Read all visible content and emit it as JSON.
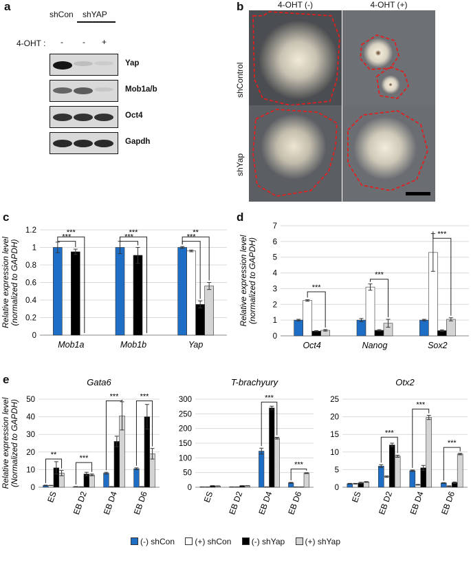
{
  "panel_a": {
    "letter": "a",
    "lane_groups": [
      "shCon",
      "shYAP"
    ],
    "treatment_label": "4-OHT :",
    "treatment_marks": [
      "-",
      "-",
      "+"
    ],
    "blots": [
      {
        "label": "Yap",
        "bands": [
          0.95,
          0.12,
          0.06
        ]
      },
      {
        "label": "Mob1a/b",
        "bands": [
          0.55,
          0.6,
          0.08
        ]
      },
      {
        "label": "Oct4",
        "bands": [
          0.8,
          0.8,
          0.8
        ]
      },
      {
        "label": "Gapdh",
        "bands": [
          0.85,
          0.85,
          0.85
        ]
      }
    ]
  },
  "panel_b": {
    "letter": "b",
    "col_headers": [
      "4-OHT (-)",
      "4-OHT (+)"
    ],
    "row_labels": [
      "shControl",
      "shYap"
    ]
  },
  "panel_c": {
    "letter": "c"
  },
  "panel_d": {
    "letter": "d"
  },
  "panel_e": {
    "letter": "e"
  },
  "colors": {
    "neg_shCon": "#1f6ec5",
    "pos_shCon": "#ffffff",
    "neg_shYap": "#000000",
    "pos_shYap": "#d4d4d4",
    "outline_red": "#e02020"
  },
  "legend": [
    "(-) shCon",
    "(+) shCon",
    "(-) shYap",
    "(+) shYap"
  ],
  "chart_data": [
    {
      "id": "c",
      "type": "bar",
      "title": "",
      "ylabel": "Relative expression level",
      "ylabel2": "(normalized to GAPDH)",
      "ylim": [
        0,
        1.2
      ],
      "yticks": [
        "0",
        "0.2",
        "0.4",
        "0.6",
        "0.8",
        "1",
        "1.2"
      ],
      "categories": [
        "Mob1a",
        "Mob1b",
        "Yap"
      ],
      "series": [
        {
          "name": "(-) shCon",
          "values": [
            1.0,
            1.0,
            1.0
          ],
          "errors": [
            0.06,
            0.07,
            0.01
          ]
        },
        {
          "name": "(+) shCon",
          "values": [
            0.0,
            0.0,
            0.96
          ],
          "errors": [
            0,
            0,
            0.01
          ]
        },
        {
          "name": "(-) shYap",
          "values": [
            0.95,
            0.91,
            0.35
          ],
          "errors": [
            0.03,
            0.09,
            0.04
          ]
        },
        {
          "name": "(+) shYap",
          "values": [
            0.0,
            0.0,
            0.56
          ],
          "errors": [
            0,
            0,
            0.04
          ]
        }
      ],
      "sig": [
        {
          "cat": 0,
          "from": 0,
          "to": 3,
          "level": 1.12,
          "label": "***"
        },
        {
          "cat": 0,
          "from": 0,
          "to": 2,
          "level": 1.07,
          "label": "***"
        },
        {
          "cat": 1,
          "from": 0,
          "to": 3,
          "level": 1.12,
          "label": "***"
        },
        {
          "cat": 1,
          "from": 0,
          "to": 2,
          "level": 1.07,
          "label": "***"
        },
        {
          "cat": 2,
          "from": 0,
          "to": 3,
          "level": 1.12,
          "label": "**"
        },
        {
          "cat": 2,
          "from": 0,
          "to": 2,
          "level": 1.07,
          "label": "***"
        }
      ]
    },
    {
      "id": "d",
      "type": "bar",
      "title": "",
      "ylabel": "Relative expression level",
      "ylabel2": "(normalized to GAPDH)",
      "ylim": [
        0,
        7
      ],
      "yticks": [
        "0",
        "1",
        "2",
        "3",
        "4",
        "5",
        "6",
        "7"
      ],
      "categories": [
        "Oct4",
        "Nanog",
        "Sox2"
      ],
      "series": [
        {
          "name": "(-) shCon",
          "values": [
            1.0,
            1.0,
            1.0
          ],
          "errors": [
            0.05,
            0.1,
            0.05
          ]
        },
        {
          "name": "(+) shCon",
          "values": [
            2.25,
            3.1,
            5.3
          ],
          "errors": [
            0.05,
            0.2,
            1.2
          ]
        },
        {
          "name": "(-) shYap",
          "values": [
            0.3,
            0.35,
            0.33
          ],
          "errors": [
            0.03,
            0.04,
            0.05
          ]
        },
        {
          "name": "(+) shYap",
          "values": [
            0.35,
            0.8,
            1.05
          ],
          "errors": [
            0.05,
            0.25,
            0.1
          ]
        }
      ],
      "sig": [
        {
          "cat": 0,
          "from": 1,
          "to": 3,
          "level": 2.8,
          "label": "***"
        },
        {
          "cat": 1,
          "from": 1,
          "to": 3,
          "level": 3.6,
          "label": "***"
        },
        {
          "cat": 2,
          "from": 1,
          "to": 3,
          "level": 6.2,
          "label": "***"
        }
      ]
    },
    {
      "id": "e1",
      "type": "bar",
      "title": "Gata6",
      "ylabel": "Relative expression level",
      "ylabel2": "(Normalized to GAPDH)",
      "ylim": [
        0,
        50
      ],
      "yticks": [
        "0",
        "10",
        "20",
        "30",
        "40",
        "50"
      ],
      "categories": [
        "ES",
        "EB D2",
        "EB D4",
        "EB D6"
      ],
      "series": [
        {
          "name": "(-) shCon",
          "values": [
            1.0,
            0.3,
            8.0,
            10.5
          ],
          "errors": [
            0.2,
            0.1,
            0.5,
            0.5
          ]
        },
        {
          "name": "(+) shCon",
          "values": [
            1.0,
            0.2,
            0.3,
            0.3
          ],
          "errors": [
            0.1,
            0.1,
            0.1,
            0.1
          ]
        },
        {
          "name": "(-) shYap",
          "values": [
            11.0,
            7.5,
            26.0,
            40.0
          ],
          "errors": [
            3.5,
            1.0,
            3.0,
            7.0
          ]
        },
        {
          "name": "(+) shYap",
          "values": [
            8.0,
            7.0,
            40.5,
            19.0
          ],
          "errors": [
            1.5,
            0.5,
            8.0,
            3.0
          ]
        }
      ],
      "sig": [
        {
          "cat": 0,
          "from": 0,
          "to": 3,
          "level": 16,
          "label": "**"
        },
        {
          "cat": 1,
          "from": 0,
          "to": 3,
          "level": 14,
          "label": "***"
        },
        {
          "cat": 2,
          "from": 0,
          "to": 3,
          "level": 49,
          "label": "***"
        },
        {
          "cat": 3,
          "from": 0,
          "to": 3,
          "level": 49,
          "label": "***"
        }
      ]
    },
    {
      "id": "e2",
      "type": "bar",
      "title": "T-brachyury",
      "ylabel": "",
      "ylabel2": "",
      "ylim": [
        0,
        300
      ],
      "yticks": [
        "0",
        "50",
        "100",
        "150",
        "200",
        "250",
        "300"
      ],
      "categories": [
        "ES",
        "EB D2",
        "EB D4",
        "EB D6"
      ],
      "series": [
        {
          "name": "(-) shCon",
          "values": [
            1.0,
            1.0,
            123.0,
            15.0
          ],
          "errors": [
            0.3,
            0.3,
            10.0,
            1.5
          ]
        },
        {
          "name": "(+) shCon",
          "values": [
            1.0,
            1.0,
            1.0,
            1.0
          ],
          "errors": [
            0.2,
            0.2,
            0.2,
            0.2
          ]
        },
        {
          "name": "(-) shYap",
          "values": [
            5.0,
            5.0,
            270.0,
            1.0
          ],
          "errors": [
            0.5,
            0.5,
            6.0,
            0.2
          ]
        },
        {
          "name": "(+) shYap",
          "values": [
            4.0,
            5.0,
            167.0,
            48.0
          ],
          "errors": [
            0.5,
            0.5,
            3.0,
            1.5
          ]
        }
      ],
      "sig": [
        {
          "cat": 2,
          "from": 0,
          "to": 3,
          "level": 290,
          "label": "***"
        },
        {
          "cat": 3,
          "from": 0,
          "to": 3,
          "level": 62,
          "label": "***"
        }
      ]
    },
    {
      "id": "e3",
      "type": "bar",
      "title": "Otx2",
      "ylabel": "",
      "ylabel2": "",
      "ylim": [
        0,
        25
      ],
      "yticks": [
        "0",
        "5",
        "10",
        "15",
        "20",
        "25"
      ],
      "categories": [
        "ES",
        "EB D2",
        "EB D4",
        "EB D6"
      ],
      "series": [
        {
          "name": "(-) shCon",
          "values": [
            1.0,
            6.0,
            4.7,
            1.2
          ],
          "errors": [
            0.1,
            0.4,
            0.2,
            0.1
          ]
        },
        {
          "name": "(+) shCon",
          "values": [
            1.0,
            3.0,
            0.7,
            0.3
          ],
          "errors": [
            0.1,
            0.2,
            0.1,
            0.1
          ]
        },
        {
          "name": "(-) shYap",
          "values": [
            1.2,
            12.0,
            5.5,
            1.3
          ],
          "errors": [
            0.2,
            0.5,
            0.7,
            0.2
          ]
        },
        {
          "name": "(+) shYap",
          "values": [
            1.5,
            8.8,
            19.8,
            9.4
          ],
          "errors": [
            0.1,
            0.3,
            0.6,
            0.2
          ]
        }
      ],
      "sig": [
        {
          "cat": 1,
          "from": 0,
          "to": 3,
          "level": 14.2,
          "label": "***"
        },
        {
          "cat": 2,
          "from": 0,
          "to": 3,
          "level": 22.2,
          "label": "***"
        },
        {
          "cat": 3,
          "from": 0,
          "to": 3,
          "level": 11.3,
          "label": "***"
        }
      ]
    }
  ]
}
